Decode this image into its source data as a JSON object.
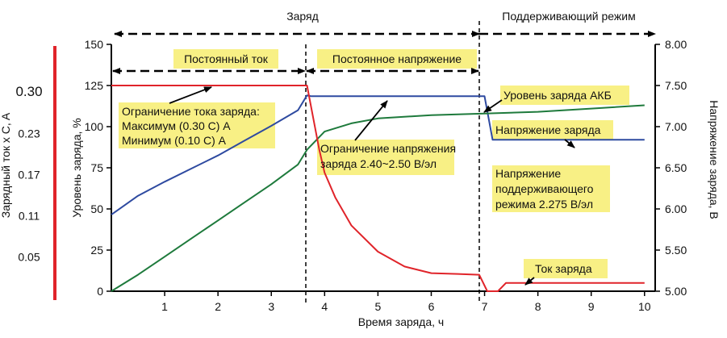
{
  "chart_data": {
    "type": "line",
    "xlabel": "Время заряда, ч",
    "x_ticks": [
      1,
      2,
      3,
      4,
      5,
      6,
      7,
      8,
      9,
      10
    ],
    "xlim": [
      0,
      10.2
    ],
    "y_left": {
      "label": "Уровень заряда, %",
      "ticks": [
        0,
        25,
        50,
        75,
        100,
        125,
        150
      ],
      "ylim": [
        0,
        150
      ]
    },
    "y_current": {
      "label": "Зарядный ток x C, A",
      "ticks": [
        "0.05",
        "0.11",
        "0.17",
        "0.23"
      ],
      "ticks_values": [
        0.05,
        0.11,
        0.17,
        0.23
      ],
      "top_label": "0.30",
      "color": "#e0242a"
    },
    "y_right": {
      "label": "Напряжение заряда, В",
      "ticks": [
        "5.00",
        "5.50",
        "6.00",
        "6.50",
        "7.00",
        "7.50",
        "8.00"
      ],
      "ylim": [
        5.0,
        8.0
      ]
    },
    "phases": {
      "charge": "Заряд",
      "float": "Поддерживающий режим",
      "constant_current": "Постоянный ток",
      "constant_voltage": "Постоянное напряжение"
    },
    "annotations": {
      "current_limit": [
        "Ограничение тока заряда:",
        "Максимум (0.30 С) А",
        "Минимум (0.10 С) А"
      ],
      "voltage_limit": [
        "Ограничение напряжения",
        "заряда 2.40~2.50 В/эл"
      ],
      "battery_level": "Уровень заряда АКБ",
      "charge_voltage": "Напряжение заряда",
      "float_voltage": [
        "Напряжение",
        "поддерживающего",
        "режима 2.275 В/эл"
      ],
      "charge_current": "Ток заряда"
    },
    "series": [
      {
        "color": "#2e4aa0",
        "axis": "right",
        "x": [
          0.0,
          0.5,
          1.0,
          1.5,
          2.0,
          2.5,
          3.0,
          3.5,
          3.67,
          3.75,
          4.0,
          5.0,
          6.0,
          6.9,
          7.0,
          7.15,
          7.2,
          8.0,
          9.0,
          10.0
        ],
        "y": [
          5.93,
          6.16,
          6.33,
          6.49,
          6.65,
          6.83,
          7.01,
          7.2,
          7.38,
          7.37,
          7.37,
          7.37,
          7.37,
          7.37,
          7.37,
          6.84,
          6.84,
          6.84,
          6.84,
          6.84
        ]
      },
      {
        "color": "#1e7a3c",
        "axis": "left",
        "x": [
          0.0,
          0.5,
          1.0,
          1.5,
          2.0,
          2.5,
          3.0,
          3.5,
          3.67,
          4.0,
          4.5,
          5.0,
          6.0,
          7.0,
          8.0,
          9.0,
          10.0
        ],
        "y": [
          0,
          10,
          21,
          32,
          43,
          54,
          65,
          77,
          86,
          97,
          102,
          105,
          107,
          108,
          109,
          111,
          113
        ]
      },
      {
        "color": "#e0242a",
        "axis": "left",
        "x": [
          0.0,
          3.67,
          3.9,
          4.0,
          4.2,
          4.5,
          5.0,
          5.5,
          6.0,
          6.5,
          6.9,
          7.05,
          7.25,
          7.4,
          8.0,
          9.0,
          10.0
        ],
        "y": [
          125,
          125,
          86,
          72,
          57,
          40,
          24,
          15,
          11,
          10.5,
          10,
          0,
          0,
          5,
          5,
          5,
          5
        ]
      }
    ]
  }
}
